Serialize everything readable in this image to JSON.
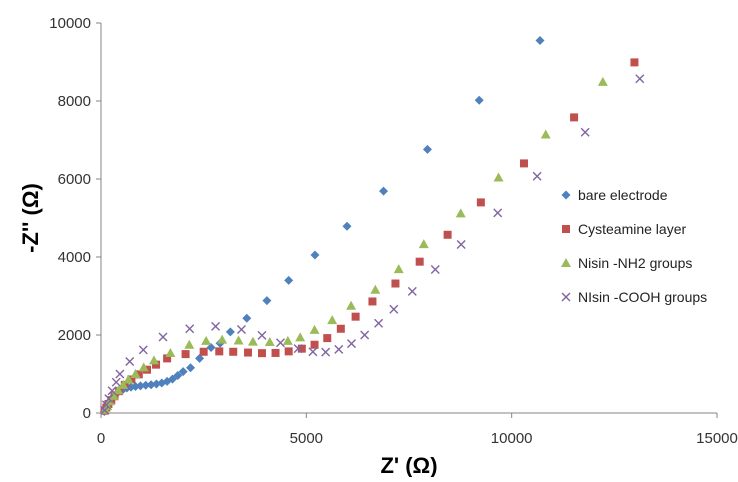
{
  "chart_data": {
    "type": "scatter",
    "title": "",
    "xlabel": "Z' (Ω)",
    "ylabel": "-Z'' (Ω)",
    "xlim": [
      0,
      15000
    ],
    "ylim": [
      0,
      10000
    ],
    "x_ticks": [
      0,
      5000,
      10000,
      15000
    ],
    "y_ticks": [
      0,
      2000,
      4000,
      6000,
      8000,
      10000
    ],
    "grid": false,
    "legend_position": "right",
    "series": [
      {
        "name": "bare electrode",
        "marker": "diamond",
        "color": "#4f81bd",
        "points": [
          [
            80,
            40
          ],
          [
            110,
            90
          ],
          [
            140,
            150
          ],
          [
            170,
            210
          ],
          [
            210,
            280
          ],
          [
            260,
            360
          ],
          [
            320,
            440
          ],
          [
            390,
            510
          ],
          [
            460,
            570
          ],
          [
            540,
            610
          ],
          [
            630,
            640
          ],
          [
            730,
            665
          ],
          [
            840,
            680
          ],
          [
            960,
            695
          ],
          [
            1090,
            710
          ],
          [
            1220,
            725
          ],
          [
            1350,
            745
          ],
          [
            1480,
            770
          ],
          [
            1610,
            810
          ],
          [
            1740,
            870
          ],
          [
            1870,
            960
          ],
          [
            2000,
            1060
          ],
          [
            2180,
            1160
          ],
          [
            2400,
            1400
          ],
          [
            2680,
            1680
          ],
          [
            2900,
            1790
          ],
          [
            3150,
            2080
          ],
          [
            3550,
            2430
          ],
          [
            4040,
            2880
          ],
          [
            4570,
            3400
          ],
          [
            5210,
            4050
          ],
          [
            5990,
            4790
          ],
          [
            6880,
            5690
          ],
          [
            7950,
            6760
          ],
          [
            9210,
            8020
          ],
          [
            10690,
            9550
          ]
        ]
      },
      {
        "name": "Cysteamine layer",
        "marker": "square",
        "color": "#c0504d",
        "points": [
          [
            90,
            60
          ],
          [
            130,
            140
          ],
          [
            180,
            230
          ],
          [
            250,
            330
          ],
          [
            330,
            430
          ],
          [
            440,
            560
          ],
          [
            580,
            720
          ],
          [
            740,
            860
          ],
          [
            920,
            990
          ],
          [
            1120,
            1110
          ],
          [
            1340,
            1240
          ],
          [
            1610,
            1400
          ],
          [
            2060,
            1510
          ],
          [
            2500,
            1570
          ],
          [
            2880,
            1580
          ],
          [
            3220,
            1570
          ],
          [
            3580,
            1550
          ],
          [
            3920,
            1535
          ],
          [
            4250,
            1540
          ],
          [
            4570,
            1580
          ],
          [
            4890,
            1650
          ],
          [
            5200,
            1750
          ],
          [
            5510,
            1920
          ],
          [
            5840,
            2160
          ],
          [
            6200,
            2470
          ],
          [
            6610,
            2860
          ],
          [
            7170,
            3320
          ],
          [
            7760,
            3880
          ],
          [
            8440,
            4570
          ],
          [
            9250,
            5400
          ],
          [
            10300,
            6400
          ],
          [
            11520,
            7580
          ],
          [
            12990,
            8990
          ]
        ]
      },
      {
        "name": "Nisin -NH2 groups",
        "marker": "triangle",
        "color": "#9bbb59",
        "points": [
          [
            100,
            80
          ],
          [
            150,
            180
          ],
          [
            220,
            300
          ],
          [
            310,
            440
          ],
          [
            420,
            580
          ],
          [
            540,
            720
          ],
          [
            670,
            860
          ],
          [
            840,
            1000
          ],
          [
            1040,
            1170
          ],
          [
            1290,
            1350
          ],
          [
            1690,
            1540
          ],
          [
            2150,
            1750
          ],
          [
            2560,
            1850
          ],
          [
            2950,
            1880
          ],
          [
            3350,
            1860
          ],
          [
            3700,
            1830
          ],
          [
            4110,
            1820
          ],
          [
            4550,
            1850
          ],
          [
            4850,
            1940
          ],
          [
            5200,
            2130
          ],
          [
            5630,
            2380
          ],
          [
            6090,
            2750
          ],
          [
            6680,
            3160
          ],
          [
            7250,
            3690
          ],
          [
            7860,
            4330
          ],
          [
            8760,
            5120
          ],
          [
            9680,
            6040
          ],
          [
            10830,
            7140
          ],
          [
            12220,
            8490
          ]
        ]
      },
      {
        "name": "NIsin -COOH groups",
        "marker": "x",
        "color": "#8064a2",
        "points": [
          [
            90,
            70
          ],
          [
            130,
            210
          ],
          [
            190,
            370
          ],
          [
            270,
            570
          ],
          [
            370,
            790
          ],
          [
            460,
            1000
          ],
          [
            700,
            1320
          ],
          [
            1030,
            1620
          ],
          [
            1510,
            1950
          ],
          [
            2160,
            2160
          ],
          [
            2790,
            2220
          ],
          [
            3420,
            2140
          ],
          [
            3920,
            1990
          ],
          [
            4370,
            1800
          ],
          [
            4800,
            1650
          ],
          [
            5160,
            1570
          ],
          [
            5470,
            1560
          ],
          [
            5790,
            1630
          ],
          [
            6100,
            1780
          ],
          [
            6420,
            2000
          ],
          [
            6760,
            2300
          ],
          [
            7130,
            2660
          ],
          [
            7580,
            3120
          ],
          [
            8140,
            3680
          ],
          [
            8770,
            4320
          ],
          [
            9660,
            5130
          ],
          [
            10620,
            6070
          ],
          [
            11790,
            7200
          ],
          [
            13120,
            8570
          ]
        ]
      }
    ]
  }
}
